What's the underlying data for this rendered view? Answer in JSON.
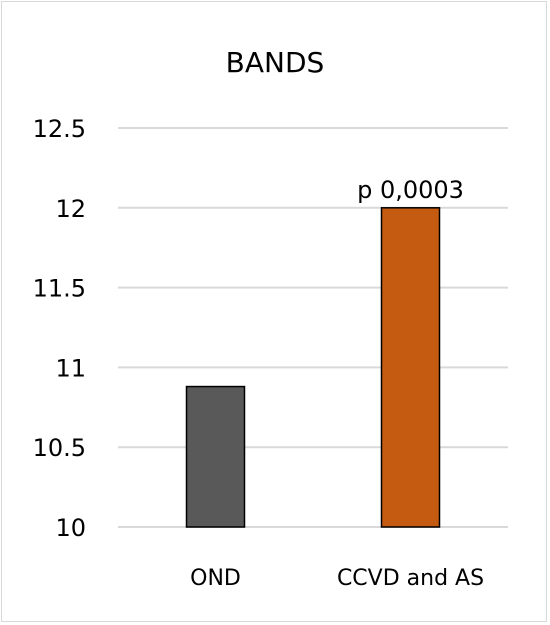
{
  "chart_data": {
    "type": "bar",
    "title": "BANDS",
    "xlabel": "",
    "ylabel": "",
    "categories": [
      "OND",
      "CCVD and AS"
    ],
    "values": [
      10.88,
      12.0
    ],
    "ylim": [
      10,
      12.5
    ],
    "yticks": [
      10,
      10.5,
      11,
      11.5,
      12,
      12.5
    ],
    "ytick_labels": [
      "10",
      "10.5",
      "11",
      "11.5",
      "12",
      "12.5"
    ],
    "grid": true,
    "legend": "none",
    "bar_colors": [
      "#595959",
      "#c55a11"
    ],
    "bar_edge_color": "#000000",
    "annotations": [
      {
        "category": "CCVD and AS",
        "text": "p 0,0003"
      }
    ]
  }
}
